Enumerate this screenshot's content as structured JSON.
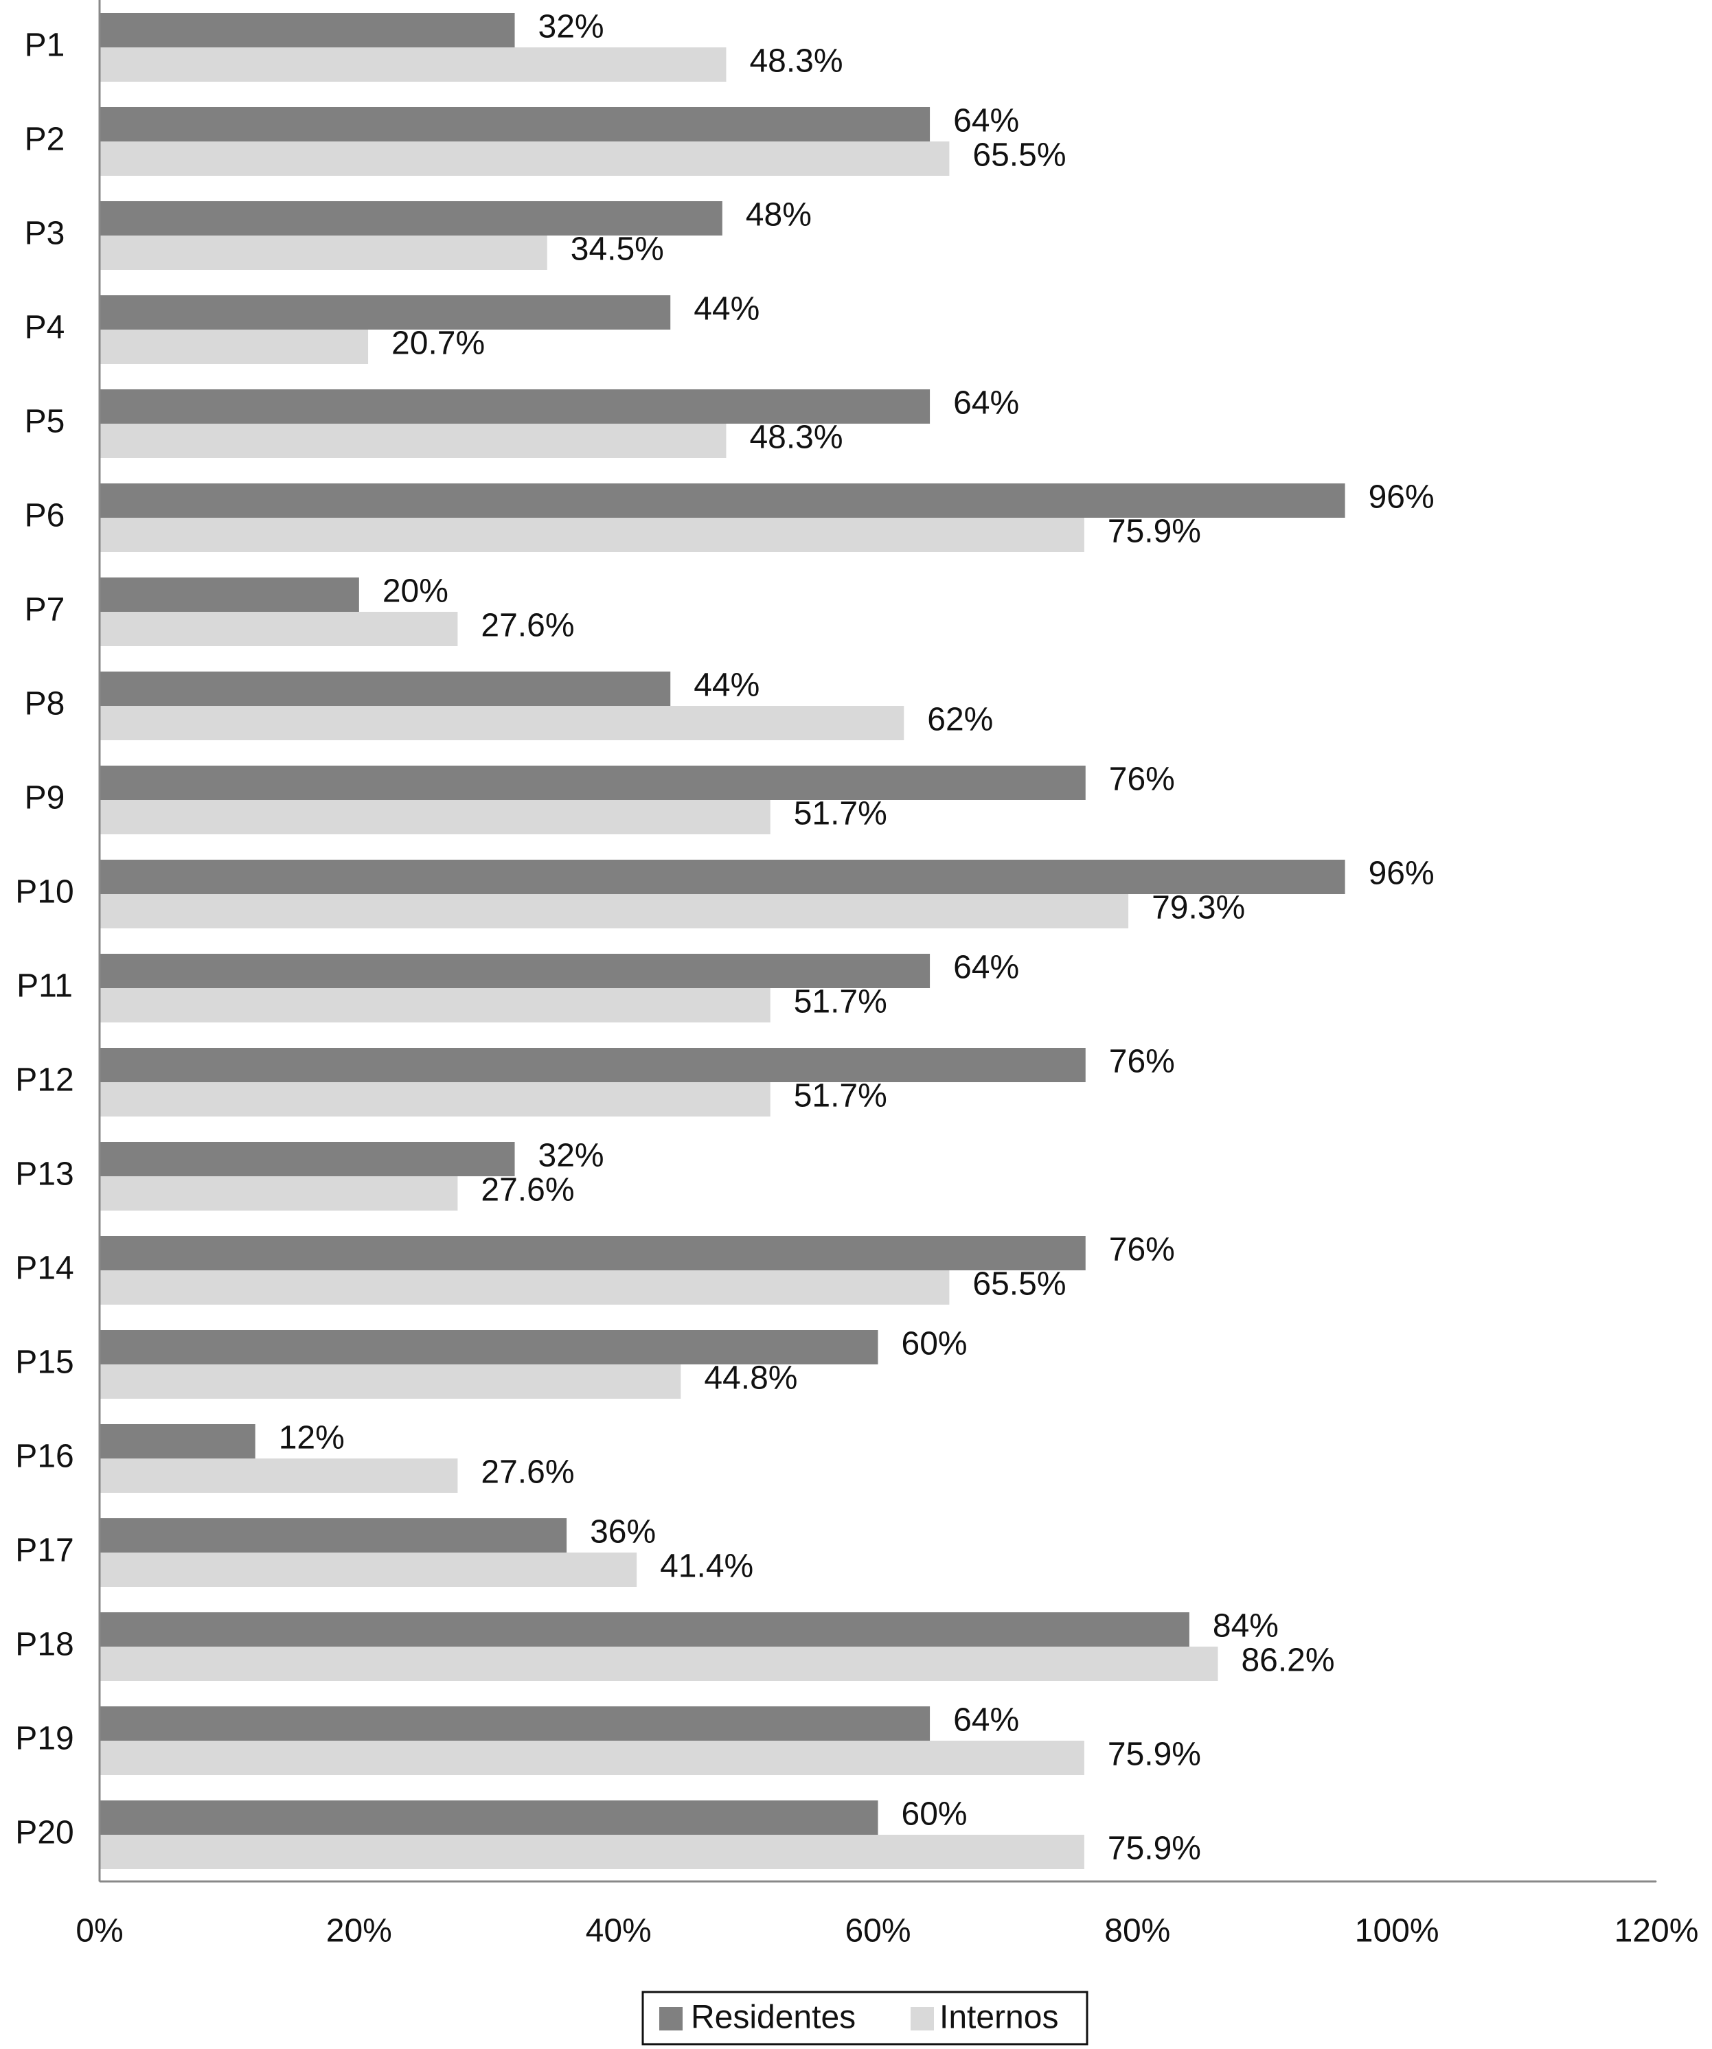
{
  "chart_data": {
    "type": "hbar",
    "categories": [
      "P1",
      "P2",
      "P3",
      "P4",
      "P5",
      "P6",
      "P7",
      "P8",
      "P9",
      "P10",
      "P11",
      "P12",
      "P13",
      "P14",
      "P15",
      "P16",
      "P17",
      "P18",
      "P19",
      "P20"
    ],
    "series": [
      {
        "name": "Residentes",
        "color": "#808080",
        "values": [
          32,
          64,
          48,
          44,
          64,
          96,
          20,
          44,
          76,
          96,
          64,
          76,
          32,
          76,
          60,
          12,
          36,
          84,
          64,
          60
        ],
        "value_labels": [
          "32%",
          "64%",
          "48%",
          "44%",
          "64%",
          "96%",
          "20%",
          "44%",
          "76%",
          "96%",
          "64%",
          "76%",
          "32%",
          "76%",
          "60%",
          "12%",
          "36%",
          "84%",
          "64%",
          "60%"
        ]
      },
      {
        "name": "Internos",
        "color": "#d9d9d9",
        "values": [
          48.3,
          65.5,
          34.5,
          20.7,
          48.3,
          75.9,
          27.6,
          62,
          51.7,
          79.3,
          51.7,
          51.7,
          27.6,
          65.5,
          44.8,
          27.6,
          41.4,
          86.2,
          75.9,
          75.9
        ],
        "value_labels": [
          "48.3%",
          "65.5%",
          "34.5%",
          "20.7%",
          "48.3%",
          "75.9%",
          "27.6%",
          "62%",
          "51.7%",
          "79.3%",
          "51.7%",
          "51.7%",
          "27.6%",
          "65.5%",
          "44.8%",
          "27.6%",
          "41.4%",
          "86.2%",
          "75.9%",
          "75.9%"
        ]
      }
    ],
    "xlim": [
      0,
      120
    ],
    "xticks": [
      {
        "value": 0,
        "label": "0%"
      },
      {
        "value": 20,
        "label": "20%"
      },
      {
        "value": 40,
        "label": "40%"
      },
      {
        "value": 60,
        "label": "60%"
      },
      {
        "value": 80,
        "label": "80%"
      },
      {
        "value": 100,
        "label": "100%"
      },
      {
        "value": 120,
        "label": "120%"
      }
    ],
    "grid": false,
    "legend": "bottom"
  }
}
